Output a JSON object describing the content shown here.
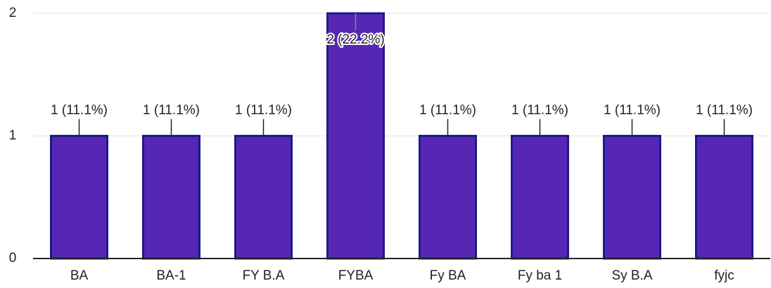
{
  "chart_data": {
    "type": "bar",
    "categories": [
      "BA",
      "BA-1",
      "FY B.A",
      "FYBA",
      "Fy BA",
      "Fy ba 1",
      "Sy B.A",
      "fyjc"
    ],
    "values": [
      1,
      1,
      1,
      2,
      1,
      1,
      1,
      1
    ],
    "value_labels": [
      "1 (11.1%)",
      "1 (11.1%)",
      "1 (11.1%)",
      "2 (22.2%)",
      "1 (11.1%)",
      "1 (11.1%)",
      "1 (11.1%)",
      "1 (11.1%)"
    ],
    "color": "#5627b5",
    "ylim": [
      0,
      2
    ],
    "yticks": [
      0,
      1,
      2
    ],
    "grid": true
  }
}
